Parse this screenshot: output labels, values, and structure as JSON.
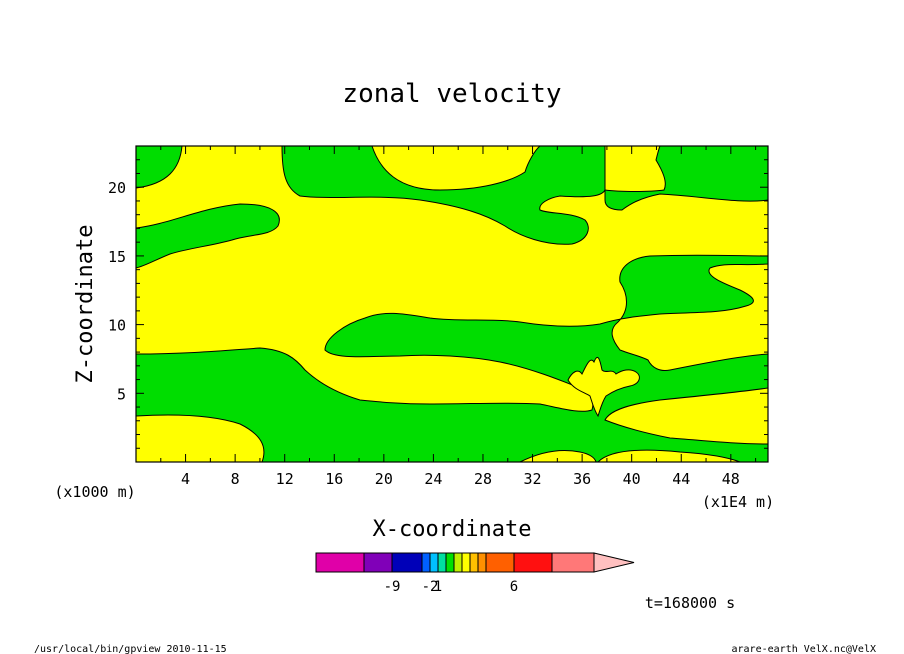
{
  "chart_data": {
    "type": "contour",
    "title": "zonal velocity",
    "xlabel": "X-coordinate",
    "ylabel": "Z-coordinate",
    "x_scale_label": "(x1E4 m)",
    "z_scale_label": "(x1000 m)",
    "xticks": [
      "4",
      "8",
      "12",
      "16",
      "20",
      "24",
      "28",
      "32",
      "36",
      "40",
      "44",
      "48"
    ],
    "yticks": [
      "5",
      "10",
      "15",
      "20"
    ],
    "xlim": [
      0,
      51
    ],
    "ylim": [
      0,
      23
    ],
    "fill_colors": {
      "positive": "#ffff00",
      "negative": "#00dd00"
    },
    "colorbar": {
      "colors": [
        "#e000a8",
        "#8000b8",
        "#0000b8",
        "#0060ff",
        "#00c0ff",
        "#00e0a0",
        "#00e000",
        "#c0f000",
        "#ffff00",
        "#ffc000",
        "#ff9000",
        "#ff6000",
        "#ff1010",
        "#ff7878",
        "#ffc0c0"
      ],
      "tick_labels": [
        "-9",
        "-2",
        "1",
        "6"
      ]
    },
    "time_label": "t=168000 s",
    "footer_left": "/usr/local/bin/gpview  2010-11-15",
    "footer_right": "arare-earth_VelX.nc@VelX"
  }
}
